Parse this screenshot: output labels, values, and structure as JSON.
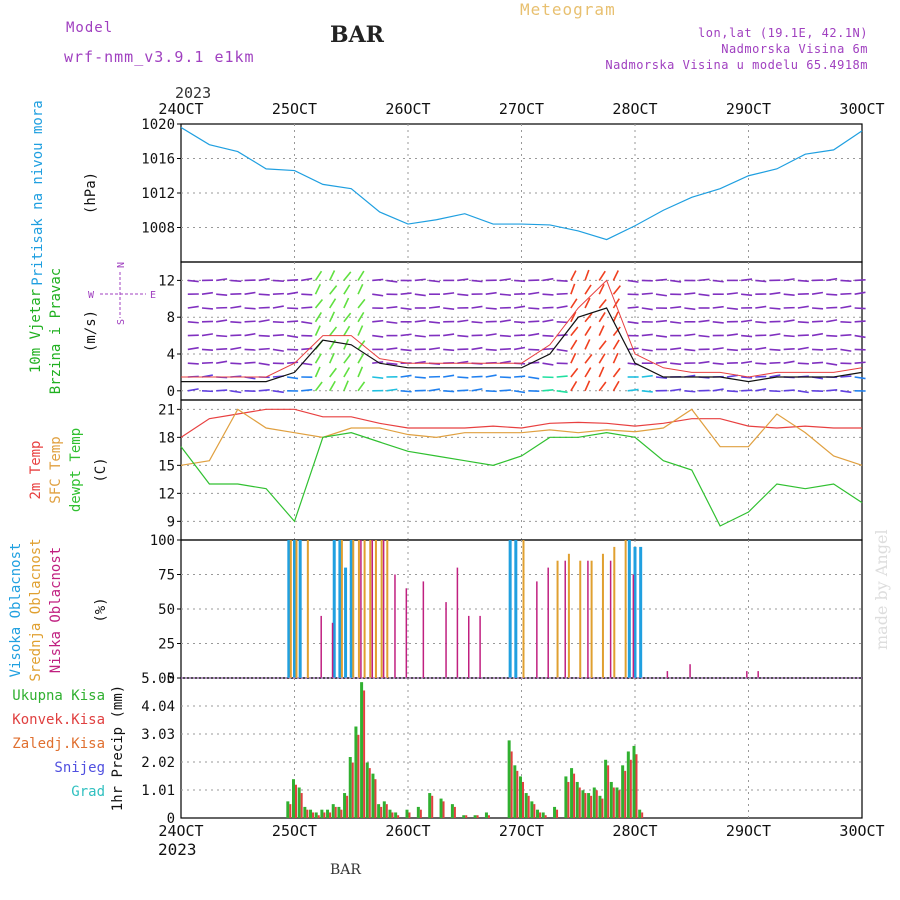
{
  "header": {
    "model_label": "Model",
    "model_name": "wrf-nmm_v3.9.1 e1km",
    "title": "BAR",
    "subtitle": "Meteogram",
    "location": "lon,lat (19.1E, 42.1N)",
    "elevation": "Nadmorska Visina 6m",
    "model_elevation": "Nadmorska Visina u modelu 65.4918m",
    "watermark": "made by Angel",
    "bottom_label": "BAR"
  },
  "time_axis": {
    "year_top": "2023",
    "year_bottom": "2023",
    "ticks": [
      "24OCT",
      "25OCT",
      "26OCT",
      "27OCT",
      "28OCT",
      "29OCT",
      "30OCT"
    ]
  },
  "colors": {
    "pressure": "#1f9fe0",
    "temp2m": "#e84040",
    "sfc_temp": "#e0a040",
    "dewpt": "#30c030",
    "high_cloud": "#20a0e0",
    "mid_cloud": "#e0a030",
    "low_cloud": "#c02080",
    "precip_total": "#30b030",
    "precip_conv": "#e04040",
    "wind_label": "#20b020",
    "legend_purple": "#a040c0"
  },
  "chart_data": [
    {
      "type": "line",
      "name": "pressure",
      "ylabel_lines": [
        "Pritisak na nivou mora",
        "(hPa)"
      ],
      "yticks": [
        "1008",
        "1012",
        "1016",
        "1020"
      ],
      "ylim": [
        1004,
        1020
      ],
      "x": [
        0,
        0.25,
        0.5,
        0.75,
        1,
        1.25,
        1.5,
        1.75,
        2,
        2.25,
        2.5,
        2.75,
        3,
        3.25,
        3.5,
        3.75,
        4,
        4.25,
        4.5,
        4.75,
        5,
        5.25,
        5.5,
        5.75,
        6
      ],
      "values": [
        1019.6,
        1017.6,
        1016.8,
        1014.8,
        1014.6,
        1013.0,
        1012.5,
        1009.8,
        1008.4,
        1008.9,
        1009.6,
        1008.4,
        1008.4,
        1008.3,
        1007.6,
        1006.6,
        1008.2,
        1010.0,
        1011.5,
        1012.5,
        1014.0,
        1014.8,
        1016.5,
        1017.0,
        1019.2
      ]
    },
    {
      "type": "line",
      "name": "wind",
      "ylabel_lines": [
        "10m Vjetar",
        "Brzina i Pravac",
        "(m/s)"
      ],
      "compass": [
        "N",
        "W",
        "E",
        "S"
      ],
      "yticks": [
        "0",
        "4",
        "8",
        "12"
      ],
      "ylim": [
        -1,
        14
      ],
      "x": [
        0,
        0.25,
        0.5,
        0.75,
        1,
        1.25,
        1.5,
        1.75,
        2,
        2.25,
        2.5,
        2.75,
        3,
        3.25,
        3.5,
        3.75,
        4,
        4.25,
        4.5,
        4.75,
        5,
        5.25,
        5.5,
        5.75,
        6
      ],
      "values": [
        1,
        1,
        1,
        1,
        2,
        5.5,
        5,
        3,
        2.5,
        2.5,
        2.5,
        2.5,
        2.5,
        4,
        8,
        9,
        3,
        1.5,
        1.5,
        1.5,
        1,
        1.5,
        1.5,
        1.5,
        2
      ],
      "gusts": [
        1.5,
        1.5,
        1.5,
        1.5,
        3,
        6,
        6,
        3.5,
        3,
        3,
        3,
        3,
        3,
        5,
        9,
        12,
        4,
        2.5,
        2,
        2,
        1.5,
        2,
        2,
        2,
        2.5
      ]
    },
    {
      "type": "line",
      "name": "temperature",
      "ylabel_lines": [
        "2m Temp",
        "SFC Temp",
        "dewpt Temp",
        "(C)"
      ],
      "yticks": [
        "9",
        "12",
        "15",
        "18",
        "21"
      ],
      "ylim": [
        7,
        22
      ],
      "x": [
        0,
        0.25,
        0.5,
        0.75,
        1,
        1.25,
        1.5,
        1.75,
        2,
        2.25,
        2.5,
        2.75,
        3,
        3.25,
        3.5,
        3.75,
        4,
        4.25,
        4.5,
        4.75,
        5,
        5.25,
        5.5,
        5.75,
        6
      ],
      "series": [
        {
          "name": "2m Temp",
          "values": [
            18,
            20,
            20.5,
            21,
            21,
            20.2,
            20.2,
            19.5,
            19,
            19,
            19,
            19.2,
            19,
            19.5,
            19.6,
            19.5,
            19.2,
            19.5,
            20,
            20,
            19.2,
            19,
            19.2,
            19,
            19
          ]
        },
        {
          "name": "SFC Temp",
          "values": [
            15,
            15.5,
            21,
            19,
            18.5,
            18,
            19,
            19,
            18.3,
            18,
            18.5,
            18.5,
            18.5,
            18.8,
            18.5,
            18.8,
            18.6,
            19,
            21,
            17,
            17,
            20.5,
            18.5,
            16,
            15
          ]
        },
        {
          "name": "dewpt Temp",
          "values": [
            17,
            13,
            13,
            12.5,
            9,
            18,
            18.5,
            17.5,
            16.5,
            16,
            15.5,
            15,
            16,
            18,
            18,
            18.5,
            18,
            15.5,
            14.5,
            8.5,
            10,
            13,
            12.5,
            13,
            11
          ]
        }
      ]
    },
    {
      "type": "bar",
      "name": "cloudiness",
      "ylabel_lines": [
        "Visoka Oblacnost",
        "Srednja Oblacnost",
        "Niska Oblacnost",
        "(%)"
      ],
      "yticks": [
        "0",
        "25",
        "50",
        "75",
        "100"
      ],
      "ylim": [
        0,
        100
      ],
      "series": [
        {
          "name": "Visoka Oblacnost",
          "x": [
            0.95,
            1.0,
            1.05,
            1.35,
            1.4,
            1.45,
            1.5,
            2.9,
            2.95,
            3.95,
            4.0,
            4.05
          ],
          "values": [
            100,
            100,
            100,
            100,
            100,
            80,
            100,
            100,
            100,
            100,
            95,
            95
          ]
        },
        {
          "name": "Srednja Oblacnost",
          "x": [
            0.95,
            1.0,
            1.1,
            1.4,
            1.5,
            1.55,
            1.6,
            1.65,
            1.7,
            1.75,
            1.8,
            3.0,
            3.3,
            3.4,
            3.5,
            3.6,
            3.7,
            3.8,
            3.9
          ],
          "values": [
            100,
            100,
            100,
            100,
            100,
            100,
            100,
            100,
            100,
            100,
            100,
            100,
            85,
            90,
            85,
            85,
            90,
            95,
            100
          ]
        },
        {
          "name": "Niska Oblacnost",
          "x": [
            1.2,
            1.3,
            1.55,
            1.65,
            1.75,
            1.85,
            1.95,
            2.1,
            2.3,
            2.4,
            2.5,
            2.6,
            3.1,
            3.2,
            3.35,
            3.55,
            3.75,
            3.95,
            4.25,
            4.45,
            4.95,
            5.05
          ],
          "values": [
            45,
            40,
            100,
            100,
            100,
            75,
            65,
            70,
            55,
            80,
            45,
            45,
            70,
            80,
            85,
            85,
            85,
            75,
            5,
            10,
            5,
            5
          ]
        }
      ]
    },
    {
      "type": "bar",
      "name": "precipitation",
      "ylabel_lines": [
        "1hr Precip (mm)"
      ],
      "legend": [
        "Ukupna Kisa",
        "Konvek.Kisa",
        "Zaledj.Kisa",
        "Snijeg",
        "Grad"
      ],
      "yticks": [
        "0",
        "1.01",
        "2.02",
        "3.03",
        "4.04",
        "5.05"
      ],
      "ylim": [
        0,
        5.05
      ],
      "x": [
        0.95,
        1.0,
        1.05,
        1.1,
        1.15,
        1.2,
        1.25,
        1.3,
        1.35,
        1.4,
        1.45,
        1.5,
        1.55,
        1.6,
        1.65,
        1.7,
        1.75,
        1.8,
        1.85,
        1.9,
        2.0,
        2.1,
        2.2,
        2.3,
        2.4,
        2.5,
        2.6,
        2.7,
        2.9,
        2.95,
        3.0,
        3.05,
        3.1,
        3.15,
        3.2,
        3.3,
        3.4,
        3.45,
        3.5,
        3.55,
        3.6,
        3.65,
        3.7,
        3.75,
        3.8,
        3.85,
        3.9,
        3.95,
        4.0,
        4.05
      ],
      "values": [
        0.6,
        1.4,
        1.1,
        0.4,
        0.3,
        0.2,
        0.3,
        0.3,
        0.5,
        0.4,
        0.9,
        2.2,
        3.3,
        4.9,
        2.0,
        1.6,
        0.5,
        0.6,
        0.3,
        0.2,
        0.3,
        0.4,
        0.9,
        0.7,
        0.5,
        0.1,
        0.1,
        0.2,
        2.8,
        1.9,
        1.5,
        0.9,
        0.6,
        0.3,
        0.2,
        0.4,
        1.5,
        1.8,
        1.3,
        1.0,
        0.9,
        1.1,
        0.8,
        2.1,
        1.3,
        1.1,
        1.9,
        2.4,
        2.6,
        0.3
      ],
      "convective": [
        0.5,
        1.2,
        0.9,
        0.3,
        0.2,
        0.1,
        0.2,
        0.2,
        0.4,
        0.3,
        0.8,
        2.0,
        3.0,
        4.6,
        1.8,
        1.4,
        0.4,
        0.5,
        0.2,
        0.1,
        0.2,
        0.3,
        0.8,
        0.6,
        0.4,
        0.1,
        0.1,
        0.1,
        2.4,
        1.7,
        1.3,
        0.8,
        0.5,
        0.2,
        0.1,
        0.3,
        1.3,
        1.6,
        1.1,
        0.9,
        0.8,
        1.0,
        0.7,
        1.9,
        1.1,
        1.0,
        1.7,
        2.1,
        2.3,
        0.2
      ]
    }
  ]
}
